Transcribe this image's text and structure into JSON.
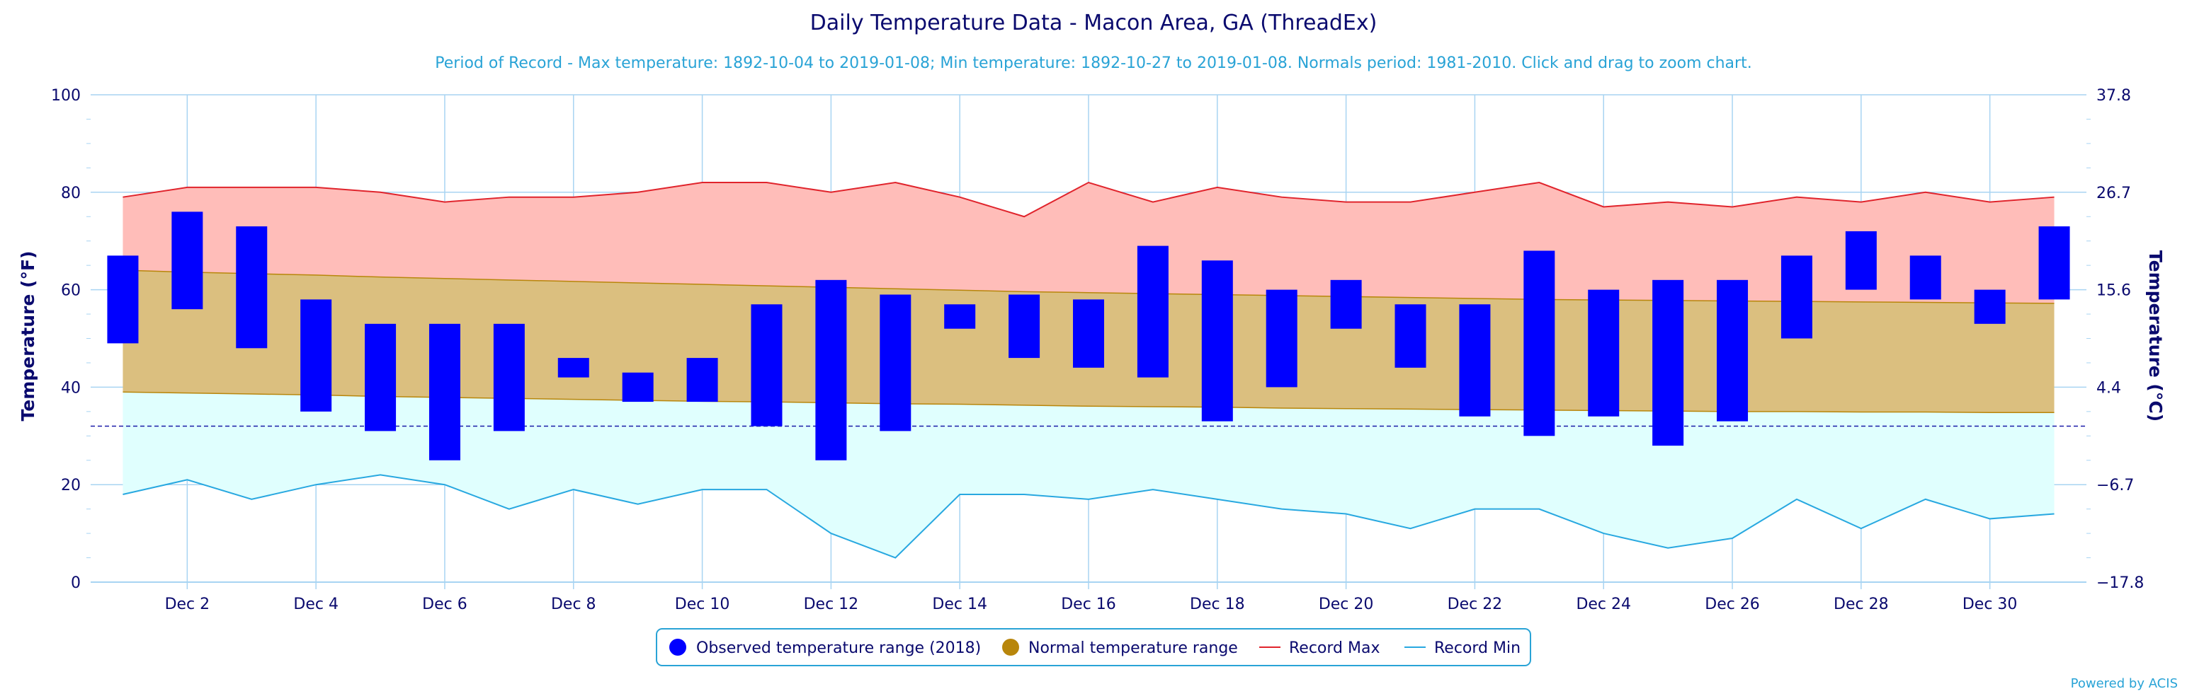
{
  "chart_data": {
    "type": "bar",
    "title": "Daily Temperature Data - Macon Area, GA (ThreadEx)",
    "subtitle": "Period of Record - Max temperature: 1892-10-04 to 2019-01-08; Min temperature: 1892-10-27 to 2019-01-08. Normals period: 1981-2010. Click and drag to zoom chart.",
    "ylabel": "Temperature (°F)",
    "ylabel_right": "Temperature (°C)",
    "ylim": [
      0,
      100
    ],
    "y_ticks": [
      "0",
      "20",
      "40",
      "60",
      "80",
      "100"
    ],
    "y_ticks_right": [
      "−17.8",
      "−6.7",
      "4.4",
      "15.6",
      "26.7",
      "37.8"
    ],
    "x_tick_labels": [
      "Dec 2",
      "Dec 4",
      "Dec 6",
      "Dec 8",
      "Dec 10",
      "Dec 12",
      "Dec 14",
      "Dec 16",
      "Dec 18",
      "Dec 20",
      "Dec 22",
      "Dec 24",
      "Dec 26",
      "Dec 28",
      "Dec 30"
    ],
    "days": [
      1,
      2,
      3,
      4,
      5,
      6,
      7,
      8,
      9,
      10,
      11,
      12,
      13,
      14,
      15,
      16,
      17,
      18,
      19,
      20,
      21,
      22,
      23,
      24,
      25,
      26,
      27,
      28,
      29,
      30,
      31
    ],
    "freezing_line": 32,
    "series": [
      {
        "name": "Observed temperature range (2018)",
        "low": [
          49,
          56,
          48,
          35,
          31,
          25,
          31,
          42,
          37,
          37,
          32,
          25,
          31,
          52,
          46,
          44,
          42,
          33,
          40,
          52,
          44,
          34,
          30,
          34,
          28,
          33,
          50,
          60,
          58,
          53,
          58
        ],
        "high": [
          67,
          76,
          73,
          58,
          53,
          53,
          53,
          46,
          43,
          46,
          57,
          62,
          59,
          57,
          59,
          58,
          69,
          66,
          60,
          62,
          57,
          57,
          68,
          60,
          62,
          62,
          67,
          72,
          67,
          60,
          73
        ]
      },
      {
        "name": "Normal temperature range",
        "low": [
          39,
          38.8,
          38.6,
          38.4,
          38.1,
          37.9,
          37.7,
          37.5,
          37.3,
          37.1,
          37,
          36.8,
          36.6,
          36.5,
          36.3,
          36.1,
          36,
          35.9,
          35.7,
          35.6,
          35.5,
          35.4,
          35.3,
          35.2,
          35.1,
          35,
          35,
          34.9,
          34.9,
          34.8,
          34.8
        ],
        "high": [
          64,
          63.6,
          63.3,
          63,
          62.6,
          62.3,
          62,
          61.7,
          61.4,
          61.1,
          60.8,
          60.5,
          60.2,
          59.9,
          59.6,
          59.4,
          59.2,
          59,
          58.8,
          58.6,
          58.4,
          58.2,
          58,
          57.9,
          57.8,
          57.7,
          57.6,
          57.5,
          57.4,
          57.3,
          57.2
        ]
      },
      {
        "name": "Record Max",
        "values": [
          79,
          81,
          81,
          81,
          80,
          78,
          79,
          79,
          80,
          82,
          82,
          80,
          82,
          79,
          75,
          82,
          78,
          81,
          79,
          78,
          78,
          80,
          82,
          77,
          78,
          77,
          79,
          78,
          80,
          78,
          79
        ]
      },
      {
        "name": "Record Min",
        "values": [
          18,
          21,
          17,
          20,
          22,
          20,
          15,
          19,
          16,
          19,
          19,
          10,
          5,
          18,
          18,
          17,
          19,
          17,
          15,
          14,
          11,
          15,
          15,
          10,
          7,
          9,
          17,
          11,
          17,
          13,
          14
        ]
      }
    ],
    "legend_position": "bottom-center",
    "grid": true,
    "credits": "Powered by ACIS",
    "colors": {
      "observed": "#0000ff",
      "normal_fill": "#dbbf7f",
      "normal_line": "#b8860b",
      "normal_legend": "#b8860b",
      "record_max_line": "#e0242c",
      "record_max_fill": "#ffbdb9",
      "record_min_line": "#28a8e0",
      "record_min_fill": "#e0fffe",
      "grid": "#a8d4f2",
      "axis_text": "#0a0a6e",
      "subtitle": "#29a3d6",
      "freezing": "#1a1aa8"
    }
  }
}
